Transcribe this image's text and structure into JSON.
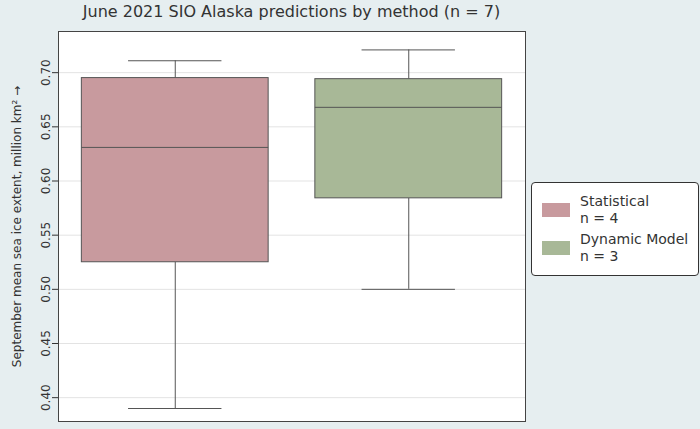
{
  "chart_data": {
    "type": "box",
    "title": "June 2021 SIO Alaska predictions by method (n = 7)",
    "y_label": "September mean sea ice extent, million km²",
    "series": [
      {
        "name": "Statistical",
        "count_label": "n = 4",
        "color": "#c89a9e",
        "min": 0.39,
        "q1": 0.525,
        "median": 0.631,
        "q3": 0.695,
        "max": 0.711
      },
      {
        "name": "Dynamic Model",
        "count_label": "n = 3",
        "color": "#a8b897",
        "min": 0.5,
        "q1": 0.584,
        "median": 0.668,
        "q3": 0.694,
        "max": 0.721
      }
    ],
    "ylim": [
      0.378,
      0.738
    ],
    "yticks": [
      {
        "value": 0.4,
        "label": "0.40"
      },
      {
        "value": 0.45,
        "label": "0.45"
      },
      {
        "value": 0.5,
        "label": "0.50"
      },
      {
        "value": 0.55,
        "label": "0.55"
      },
      {
        "value": 0.6,
        "label": "0.60"
      },
      {
        "value": 0.65,
        "label": "0.65"
      },
      {
        "value": 0.7,
        "label": "0.70"
      }
    ],
    "grid": true,
    "legend": "right",
    "tick_labels": "y"
  }
}
